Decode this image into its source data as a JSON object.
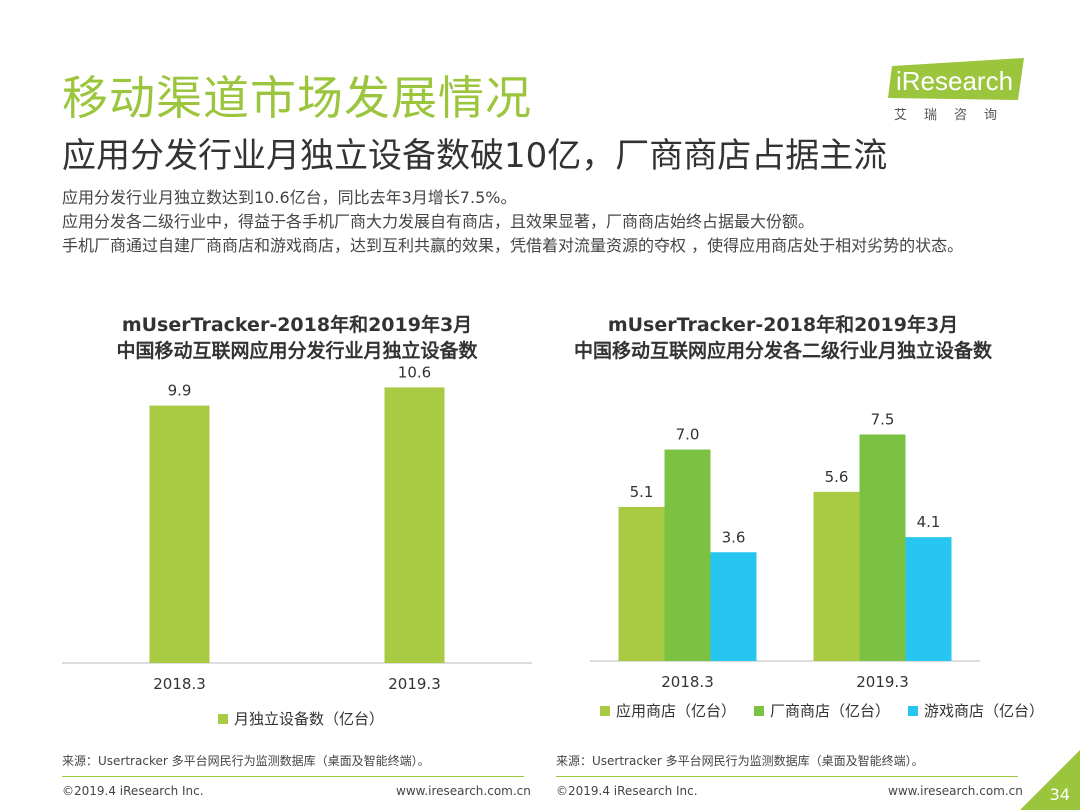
{
  "header": {
    "title": "移动渠道市场发展情况",
    "subtitle": "应用分发行业月独立设备数破10亿，厂商商店占据主流"
  },
  "logo": {
    "text": "iResearch",
    "sub": "艾瑞咨询"
  },
  "description": [
    "应用分发行业月独立数达到10.6亿台，同比去年3月增长7.5%。",
    "应用分发各二级行业中，得益于各手机厂商大力发展自有商店，且效果显著，厂商商店始终占据最大份额。",
    "手机厂商通过自建厂商商店和游戏商店，达到互利共赢的效果，凭借着对流量资源的夺权 ，使得应用商店处于相对劣势的状态。"
  ],
  "colors": {
    "accent": "#9bc53d",
    "bar_light": "#a9cb44",
    "bar_green": "#7cc242",
    "bar_blue": "#26c6f0"
  },
  "chart_data": [
    {
      "type": "bar",
      "title_lines": [
        "mUserTracker-2018年和2019年3月",
        "中国移动互联网应用分发行业月独立设备数"
      ],
      "categories": [
        "2018.3",
        "2019.3"
      ],
      "series": [
        {
          "name": "月独立设备数（亿台）",
          "values": [
            9.9,
            10.6
          ],
          "labels": [
            "9.9",
            "10.6"
          ],
          "color": "#a9cb44"
        }
      ],
      "ylim": [
        0,
        12
      ],
      "legend": "bottom"
    },
    {
      "type": "bar",
      "title_lines": [
        "mUserTracker-2018年和2019年3月",
        "中国移动互联网应用分发各二级行业月独立设备数"
      ],
      "categories": [
        "2018.3",
        "2019.3"
      ],
      "series": [
        {
          "name": "应用商店（亿台）",
          "values": [
            5.1,
            5.6
          ],
          "labels": [
            "5.1",
            "5.6"
          ],
          "color": "#a9cb44"
        },
        {
          "name": "厂商商店（亿台）",
          "values": [
            7.0,
            7.5
          ],
          "labels": [
            "7.0",
            "7.5"
          ],
          "color": "#7cc242"
        },
        {
          "name": "游戏商店（亿台）",
          "values": [
            3.6,
            4.1
          ],
          "labels": [
            "3.6",
            "4.1"
          ],
          "color": "#26c6f0"
        }
      ],
      "ylim": [
        0,
        9.6
      ],
      "legend": "bottom"
    }
  ],
  "sources": {
    "left": "来源：Usertracker 多平台网民行为监测数据库（桌面及智能终端）。",
    "right": "来源：Usertracker 多平台网民行为监测数据库（桌面及智能终端）。"
  },
  "footer": {
    "copyright_left": "©2019.4 iResearch Inc.",
    "url_left": "www.iresearch.com.cn",
    "copyright_right": "©2019.4 iResearch Inc.",
    "url_right": "www.iresearch.com.cn",
    "page": "34"
  }
}
